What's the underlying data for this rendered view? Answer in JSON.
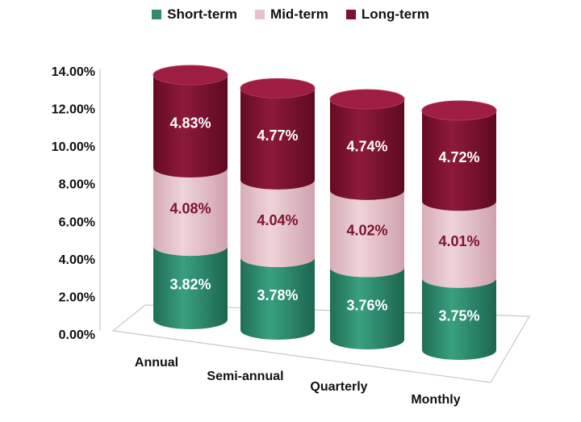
{
  "chart_data": {
    "type": "bar",
    "stacked": true,
    "style": "3d-cylinder",
    "categories": [
      "Annual",
      "Semi-annual",
      "Quarterly",
      "Monthly"
    ],
    "series": [
      {
        "name": "Short-term",
        "color": "#2e8b6e",
        "values": [
          3.82,
          3.78,
          3.76,
          3.75
        ],
        "labels": [
          "3.82%",
          "3.78%",
          "3.76%",
          "3.75%"
        ]
      },
      {
        "name": "Mid-term",
        "color": "#e6c3cb",
        "values": [
          4.08,
          4.04,
          4.02,
          4.01
        ],
        "labels": [
          "4.08%",
          "4.04%",
          "4.02%",
          "4.01%"
        ]
      },
      {
        "name": "Long-term",
        "color": "#7e1230",
        "values": [
          4.83,
          4.77,
          4.74,
          4.72
        ],
        "labels": [
          "4.83%",
          "4.77%",
          "4.74%",
          "4.72%"
        ]
      }
    ],
    "ylim": [
      0,
      14
    ],
    "yticks": [
      "0.00%",
      "2.00%",
      "4.00%",
      "6.00%",
      "8.00%",
      "10.00%",
      "12.00%",
      "14.00%"
    ],
    "legend_position": "top",
    "grid": false,
    "label_colors": {
      "Short-term": "#ffffff",
      "Mid-term": "#7e1230",
      "Long-term": "#ffffff"
    }
  }
}
